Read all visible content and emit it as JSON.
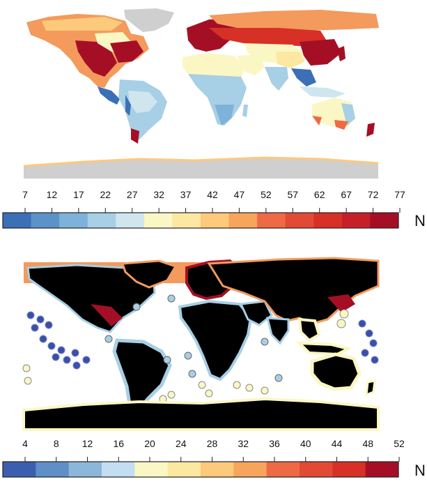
{
  "top_map": {
    "legend": {
      "ticks": [
        "7",
        "12",
        "17",
        "22",
        "27",
        "32",
        "37",
        "42",
        "47",
        "52",
        "57",
        "62",
        "67",
        "72",
        "77"
      ],
      "unit": "N",
      "colors": [
        "#3b6fb6",
        "#5b93c9",
        "#7fb2d8",
        "#a7cfe5",
        "#cfe6ef",
        "#fbf7c4",
        "#fde8a1",
        "#fdc97b",
        "#f7a45d",
        "#ee6a45",
        "#e24a35",
        "#d73027",
        "#c61f2a",
        "#a50f26"
      ]
    }
  },
  "bottom_map": {
    "legend": {
      "ticks": [
        "4",
        "8",
        "12",
        "16",
        "20",
        "24",
        "28",
        "32",
        "36",
        "40",
        "44",
        "48",
        "52"
      ],
      "unit": "N",
      "colors": [
        "#3b5fae",
        "#5f8fc6",
        "#8cb7d9",
        "#c2def0",
        "#fbf7c4",
        "#fde8a1",
        "#fdc97b",
        "#f7a45d",
        "#ee6a45",
        "#e24a35",
        "#d73027",
        "#a50f26"
      ]
    }
  }
}
